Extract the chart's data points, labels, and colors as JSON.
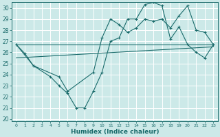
{
  "xlabel": "Humidex (Indice chaleur)",
  "bg_color": "#cce9e8",
  "grid_color": "#ffffff",
  "line_color": "#1a6b6b",
  "xlim": [
    -0.5,
    23.5
  ],
  "ylim": [
    20,
    30.5
  ],
  "yticks": [
    20,
    21,
    22,
    23,
    24,
    25,
    26,
    27,
    28,
    29,
    30
  ],
  "xticks": [
    0,
    1,
    2,
    3,
    4,
    5,
    6,
    7,
    8,
    9,
    10,
    11,
    12,
    13,
    14,
    15,
    16,
    17,
    18,
    19,
    20,
    21,
    22,
    23
  ],
  "line1_x": [
    0,
    1,
    2,
    5,
    6,
    9,
    10,
    11,
    12,
    13,
    14,
    15,
    16,
    17,
    18,
    19,
    20,
    21,
    22,
    23
  ],
  "line1_y": [
    26.7,
    25.9,
    24.8,
    23.8,
    22.5,
    24.2,
    27.3,
    29.0,
    28.5,
    27.8,
    28.2,
    29.0,
    28.8,
    29.0,
    28.2,
    29.3,
    30.2,
    28.0,
    27.8,
    26.7
  ],
  "line2_x": [
    0,
    2,
    4,
    5,
    6,
    7,
    8,
    9,
    10,
    11,
    12,
    13,
    14,
    15,
    16,
    17,
    18,
    19,
    20,
    21,
    22,
    23
  ],
  "line2_y": [
    26.7,
    24.8,
    23.8,
    23.0,
    22.3,
    21.0,
    21.0,
    22.5,
    24.2,
    27.0,
    27.3,
    29.0,
    29.0,
    30.3,
    30.5,
    30.2,
    27.2,
    28.3,
    26.7,
    26.0,
    25.5,
    26.7
  ],
  "line3_x": [
    0,
    23
  ],
  "line3_y": [
    25.5,
    26.5
  ],
  "line4_x": [
    0,
    23
  ],
  "line4_y": [
    26.7,
    26.7
  ]
}
